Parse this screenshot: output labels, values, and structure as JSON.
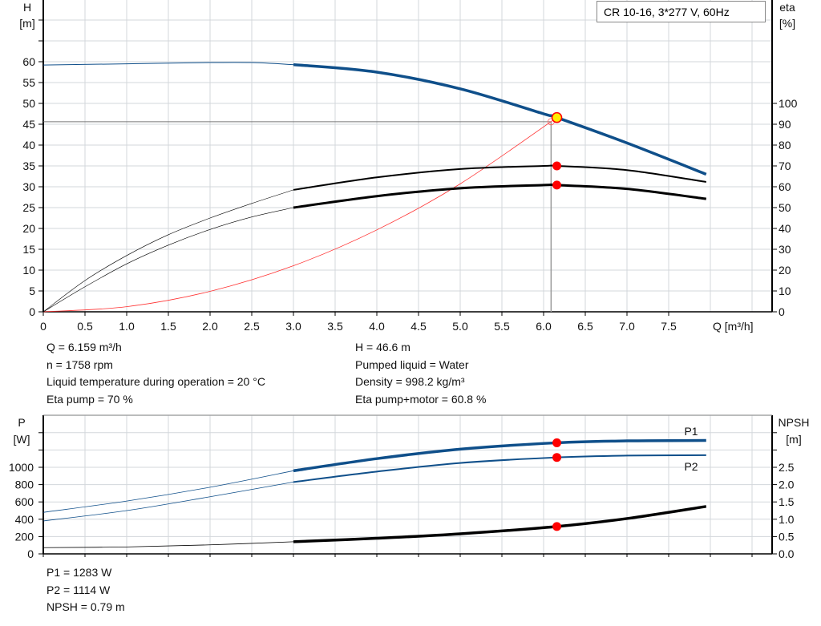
{
  "chart_data": [
    {
      "type": "line",
      "title": "CR 10-16, 3*277 V, 60Hz",
      "xlabel": "Q [m³/h]",
      "ylabel_left": [
        "H",
        "[m]"
      ],
      "ylabel_right": [
        "eta",
        "[%]"
      ],
      "xlim": [
        0,
        8.75
      ],
      "ylim_left": [
        0,
        75
      ],
      "ylim_right": [
        0,
        150
      ],
      "x_ticks": [
        "0",
        "0.5",
        "1.0",
        "1.5",
        "2.0",
        "2.5",
        "3.0",
        "3.5",
        "4.0",
        "4.5",
        "5.0",
        "5.5",
        "6.0",
        "6.5",
        "7.0",
        "7.5"
      ],
      "y_ticks_left": [
        "0",
        "5",
        "10",
        "15",
        "20",
        "25",
        "30",
        "35",
        "40",
        "45",
        "50",
        "55",
        "60"
      ],
      "y_ticks_right": [
        "0",
        "10",
        "20",
        "30",
        "40",
        "50",
        "60",
        "70",
        "80",
        "90",
        "100"
      ],
      "grid": true,
      "series": [
        {
          "id": "H",
          "axis": "left",
          "color": "#0f4f8a",
          "x": [
            0,
            1,
            2,
            2.5,
            3,
            4,
            5,
            6,
            6.159,
            7,
            7.95
          ],
          "y": [
            59.2,
            59.5,
            59.8,
            59.8,
            59.3,
            57.5,
            53.5,
            47.5,
            46.6,
            40.5,
            33
          ]
        },
        {
          "id": "eta_pump",
          "axis": "right",
          "color": "#000000",
          "x": [
            0,
            0.5,
            1,
            1.5,
            2,
            2.5,
            3,
            4,
            5,
            6,
            6.159,
            7,
            7.95
          ],
          "y": [
            0,
            15,
            27,
            37,
            45,
            52,
            58.5,
            64.5,
            68.5,
            70,
            70,
            68,
            62.3
          ]
        },
        {
          "id": "eta_pump_motor",
          "axis": "right",
          "color": "#000000",
          "x": [
            0,
            0.5,
            1,
            1.5,
            2,
            2.5,
            3,
            4,
            5,
            6,
            6.159,
            7,
            7.95
          ],
          "y": [
            0,
            12,
            23,
            32,
            39.5,
            45.5,
            50,
            55.5,
            59.3,
            60.8,
            60.8,
            59,
            54.2
          ]
        },
        {
          "id": "system_curve",
          "axis": "left",
          "color": "#ff3030",
          "x": [
            0,
            1,
            2,
            3,
            4,
            5,
            6.159
          ],
          "y": [
            0,
            1.23,
            4.91,
            11.05,
            19.65,
            30.7,
            46.6
          ]
        }
      ],
      "duty_point": {
        "Q": 6.159,
        "H": 46.6,
        "eta_pump": 70,
        "eta_pump_motor": 60.8
      }
    },
    {
      "type": "line",
      "ylabel_left": [
        "P",
        "[W]"
      ],
      "ylabel_right": [
        "NPSH",
        "[m]"
      ],
      "xlim": [
        0,
        8.75
      ],
      "ylim_left": [
        0,
        1600
      ],
      "ylim_right": [
        0,
        4.0
      ],
      "y_ticks_left": [
        "0",
        "200",
        "400",
        "600",
        "800",
        "1000"
      ],
      "y_ticks_right": [
        "0.0",
        "0.5",
        "1.0",
        "1.5",
        "2.0",
        "2.5"
      ],
      "grid": true,
      "series": [
        {
          "id": "P1",
          "name": "P1",
          "axis": "left",
          "color": "#0f4f8a",
          "x": [
            0,
            1,
            2,
            3,
            4,
            5,
            6.159,
            7,
            7.95
          ],
          "y": [
            480,
            610,
            770,
            960,
            1100,
            1210,
            1283,
            1305,
            1310
          ]
        },
        {
          "id": "P2",
          "name": "P2",
          "axis": "left",
          "color": "#0f4f8a",
          "x": [
            0,
            1,
            2,
            3,
            4,
            5,
            6.159,
            7,
            7.95
          ],
          "y": [
            380,
            500,
            660,
            830,
            950,
            1050,
            1114,
            1135,
            1140
          ]
        },
        {
          "id": "NPSH",
          "axis": "right",
          "color": "#000000",
          "x": [
            0,
            1,
            2,
            3,
            4,
            5,
            6.159,
            7,
            7.95
          ],
          "y": [
            0.18,
            0.2,
            0.26,
            0.35,
            0.45,
            0.58,
            0.79,
            1.02,
            1.37
          ]
        }
      ],
      "duty_point": {
        "Q": 6.159,
        "P1": 1283,
        "P2": 1114,
        "NPSH": 0.79
      }
    }
  ],
  "info_top_left": [
    "Q = 6.159 m³/h",
    "n = 1758 rpm",
    "Liquid temperature during operation = 20 °C",
    "Eta pump = 70 %"
  ],
  "info_top_right": [
    "H = 46.6 m",
    "Pumped liquid = Water",
    "Density = 998.2 kg/m³",
    "Eta pump+motor = 60.8 %"
  ],
  "info_bottom": [
    "P1 = 1283 W",
    "P2 = 1114 W",
    "NPSH = 0.79 m"
  ],
  "colors": {
    "curve_blue": "#0f4f8a",
    "duty_point": "#ff0000",
    "operating_point_fill": "#ffee00",
    "grid": "#d3d7db"
  }
}
